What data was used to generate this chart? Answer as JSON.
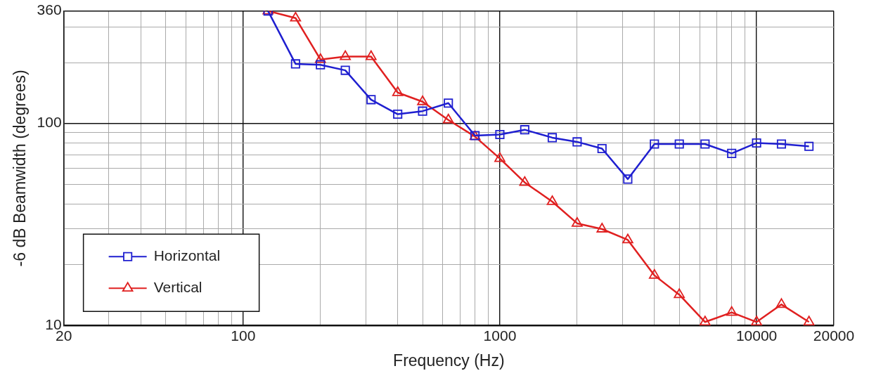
{
  "chart_data": {
    "type": "line",
    "xlabel": "Frequency (Hz)",
    "ylabel": "-6 dB Beamwidth (degrees)",
    "log": "xy",
    "grid": true,
    "legend": "bottom left",
    "x": [
      125,
      160,
      200,
      250,
      315,
      400,
      500,
      630,
      800,
      1000,
      1250,
      1600,
      2000,
      2500,
      3150,
      4000,
      5000,
      6300,
      8000,
      10000,
      12500,
      16000
    ],
    "xlim": [
      20,
      20000
    ],
    "ylim": [
      10,
      360
    ],
    "xticks": [
      20,
      {
        "value": 30,
        "label": null
      },
      {
        "value": 40,
        "label": null
      },
      {
        "value": 50,
        "label": null
      },
      {
        "value": 60,
        "label": null
      },
      {
        "value": 70,
        "label": null
      },
      {
        "value": 80,
        "label": null
      },
      {
        "value": 90,
        "label": null
      },
      100,
      {
        "value": 200,
        "label": null
      },
      {
        "value": 300,
        "label": null
      },
      {
        "value": 400,
        "label": null
      },
      {
        "value": 500,
        "label": null
      },
      {
        "value": 600,
        "label": null
      },
      {
        "value": 700,
        "label": null
      },
      {
        "value": 800,
        "label": null
      },
      {
        "value": 900,
        "label": null
      },
      1000,
      {
        "value": 2000,
        "label": null
      },
      {
        "value": 3000,
        "label": null
      },
      {
        "value": 4000,
        "label": null
      },
      {
        "value": 5000,
        "label": null
      },
      {
        "value": 6000,
        "label": null
      },
      {
        "value": 7000,
        "label": null
      },
      {
        "value": 8000,
        "label": null
      },
      {
        "value": 9000,
        "label": null
      },
      10000,
      20000
    ],
    "yticks": [
      10,
      {
        "value": 20,
        "label": null
      },
      {
        "value": 30,
        "label": null
      },
      {
        "value": 40,
        "label": null
      },
      {
        "value": 50,
        "label": null
      },
      {
        "value": 60,
        "label": null
      },
      {
        "value": 70,
        "label": null
      },
      {
        "value": 80,
        "label": null
      },
      {
        "value": 90,
        "label": null
      },
      100,
      {
        "value": 200,
        "label": null
      },
      {
        "value": 300,
        "label": null
      },
      360
    ],
    "series": [
      {
        "name": "Horizontal",
        "color": "#1f1fd0",
        "marker": "square",
        "values": [
          360,
          197,
          195,
          183,
          131,
          111,
          115,
          126,
          87,
          88,
          93,
          85,
          81,
          75,
          53,
          79,
          79,
          79,
          71,
          80,
          79,
          77
        ]
      },
      {
        "name": "Vertical",
        "color": "#e02020",
        "marker": "triangle",
        "values": [
          360,
          332,
          207,
          214,
          214,
          142,
          128,
          104,
          86,
          67,
          51,
          41,
          32,
          30,
          26.5,
          17.7,
          14.2,
          10.4,
          11.6,
          10.4,
          12.7,
          10.4
        ]
      }
    ]
  }
}
